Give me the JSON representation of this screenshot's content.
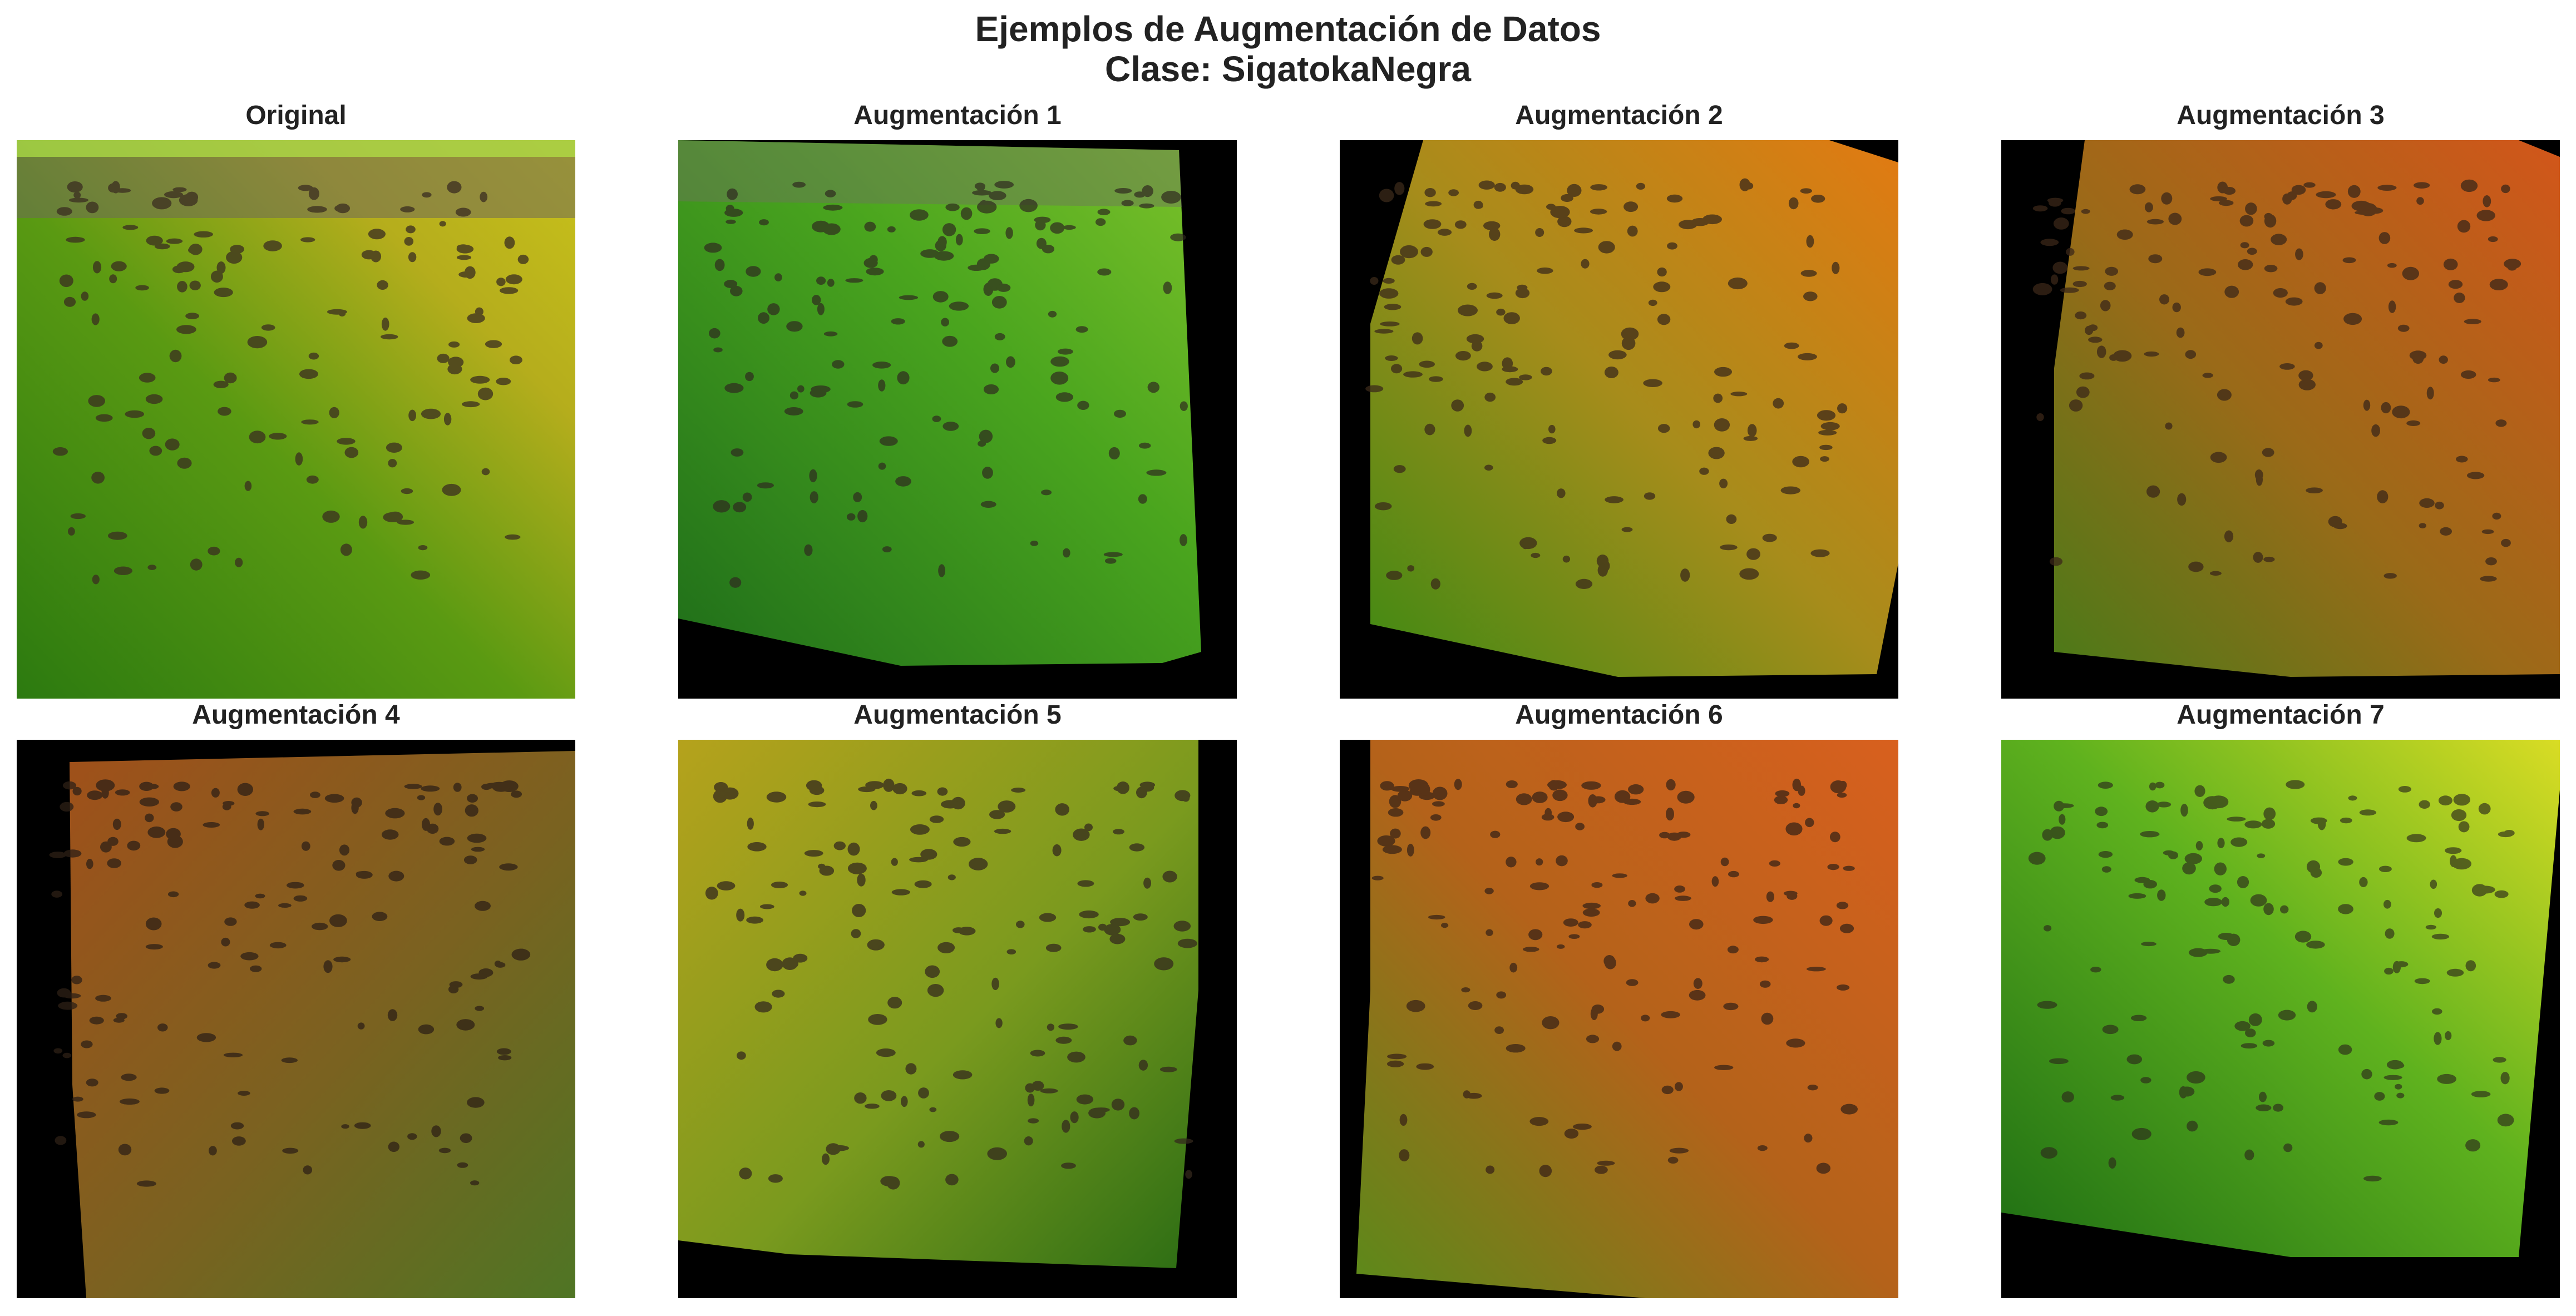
{
  "figure": {
    "title_line1": "Ejemplos de Augmentación de Datos",
    "title_line2": "Clase: SigatokaNegra"
  },
  "panels": [
    {
      "title": "Original"
    },
    {
      "title": "Augmentación 1"
    },
    {
      "title": "Augmentación 2"
    },
    {
      "title": "Augmentación 3"
    },
    {
      "title": "Augmentación 4"
    },
    {
      "title": "Augmentación 5"
    },
    {
      "title": "Augmentación 6"
    },
    {
      "title": "Augmentación 7"
    }
  ],
  "colors": {
    "background": "#ffffff",
    "padding": "#000000",
    "leaf_green": "#2f7a12",
    "leaf_yellow": "#b7b81a",
    "leaf_orange": "#d66a12",
    "spots": "#3a2d20"
  }
}
